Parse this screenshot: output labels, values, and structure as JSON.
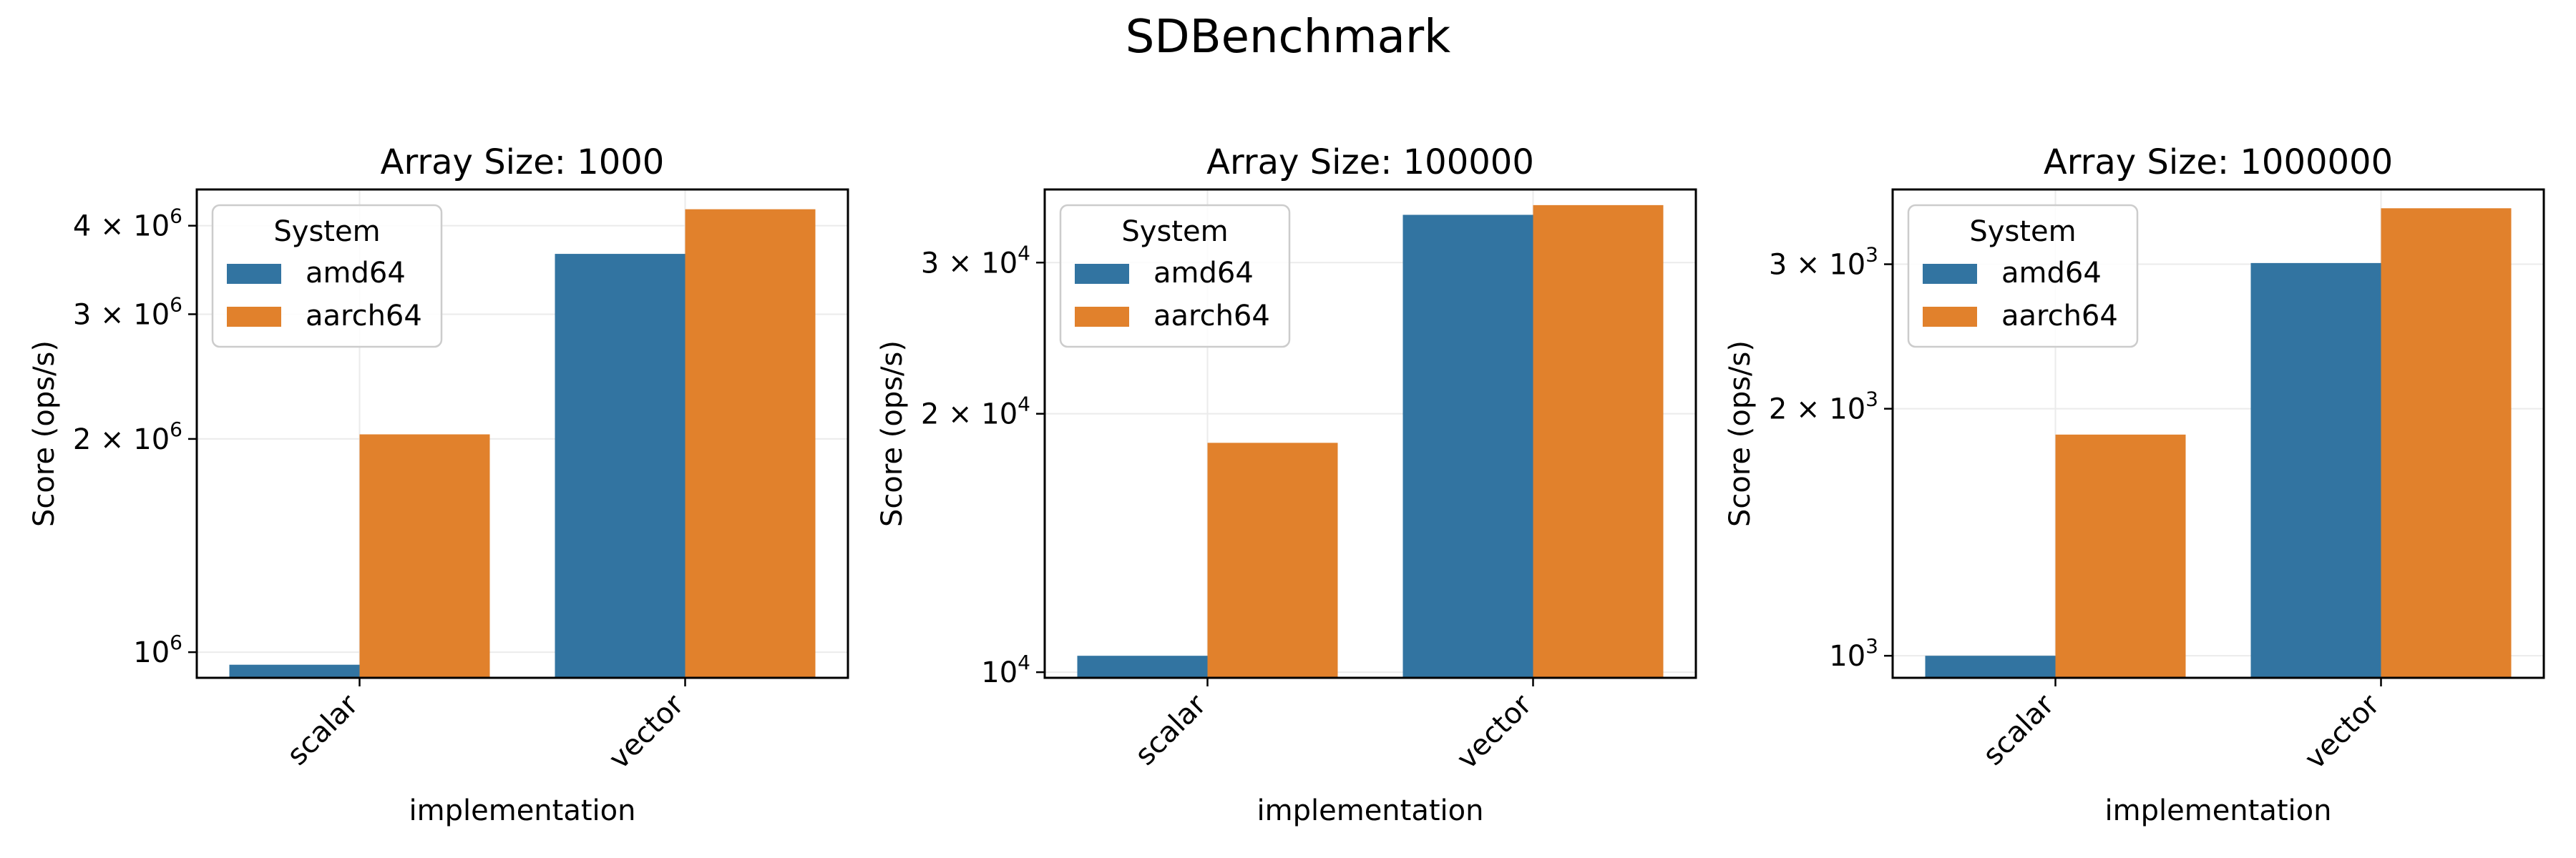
{
  "figure": {
    "title": "SDBenchmark"
  },
  "chart_data": [
    {
      "type": "bar",
      "title": "Array Size: 1000",
      "xlabel": "implementation",
      "ylabel": "Score (ops/s)",
      "yscale": "log",
      "ylim": [
        920000,
        4500000
      ],
      "yticks": [
        1000000,
        2000000,
        3000000,
        4000000
      ],
      "ytick_labels": [
        {
          "base": "10",
          "exp": "6"
        },
        {
          "base": "2 × 10",
          "exp": "6"
        },
        {
          "base": "3 × 10",
          "exp": "6"
        },
        {
          "base": "4 × 10",
          "exp": "6"
        }
      ],
      "categories": [
        "scalar",
        "vector"
      ],
      "legend_title": "System",
      "legend_position": "upper-left",
      "grid": true,
      "series": [
        {
          "name": "amd64",
          "color": "#3274a1",
          "values": [
            960000,
            3650000
          ]
        },
        {
          "name": "aarch64",
          "color": "#e1812c",
          "values": [
            2030000,
            4220000
          ]
        }
      ]
    },
    {
      "type": "bar",
      "title": "Array Size: 100000",
      "xlabel": "implementation",
      "ylabel": "Score (ops/s)",
      "yscale": "log",
      "ylim": [
        9850,
        36500
      ],
      "yticks": [
        10000,
        20000,
        30000
      ],
      "ytick_labels": [
        {
          "base": "10",
          "exp": "4"
        },
        {
          "base": "2 × 10",
          "exp": "4"
        },
        {
          "base": "3 × 10",
          "exp": "4"
        }
      ],
      "categories": [
        "scalar",
        "vector"
      ],
      "legend_title": "System",
      "legend_position": "upper-left",
      "grid": true,
      "series": [
        {
          "name": "amd64",
          "color": "#3274a1",
          "values": [
            10450,
            34100
          ]
        },
        {
          "name": "aarch64",
          "color": "#e1812c",
          "values": [
            18500,
            35000
          ]
        }
      ]
    },
    {
      "type": "bar",
      "title": "Array Size: 1000000",
      "xlabel": "implementation",
      "ylabel": "Score (ops/s)",
      "yscale": "log",
      "ylim": [
        940,
        3700
      ],
      "yticks": [
        1000,
        2000,
        3000
      ],
      "ytick_labels": [
        {
          "base": "10",
          "exp": "3"
        },
        {
          "base": "2 × 10",
          "exp": "3"
        },
        {
          "base": "3 × 10",
          "exp": "3"
        }
      ],
      "categories": [
        "scalar",
        "vector"
      ],
      "legend_title": "System",
      "legend_position": "upper-left",
      "grid": true,
      "series": [
        {
          "name": "amd64",
          "color": "#3274a1",
          "values": [
            1000,
            3010
          ]
        },
        {
          "name": "aarch64",
          "color": "#e1812c",
          "values": [
            1860,
            3510
          ]
        }
      ]
    }
  ]
}
